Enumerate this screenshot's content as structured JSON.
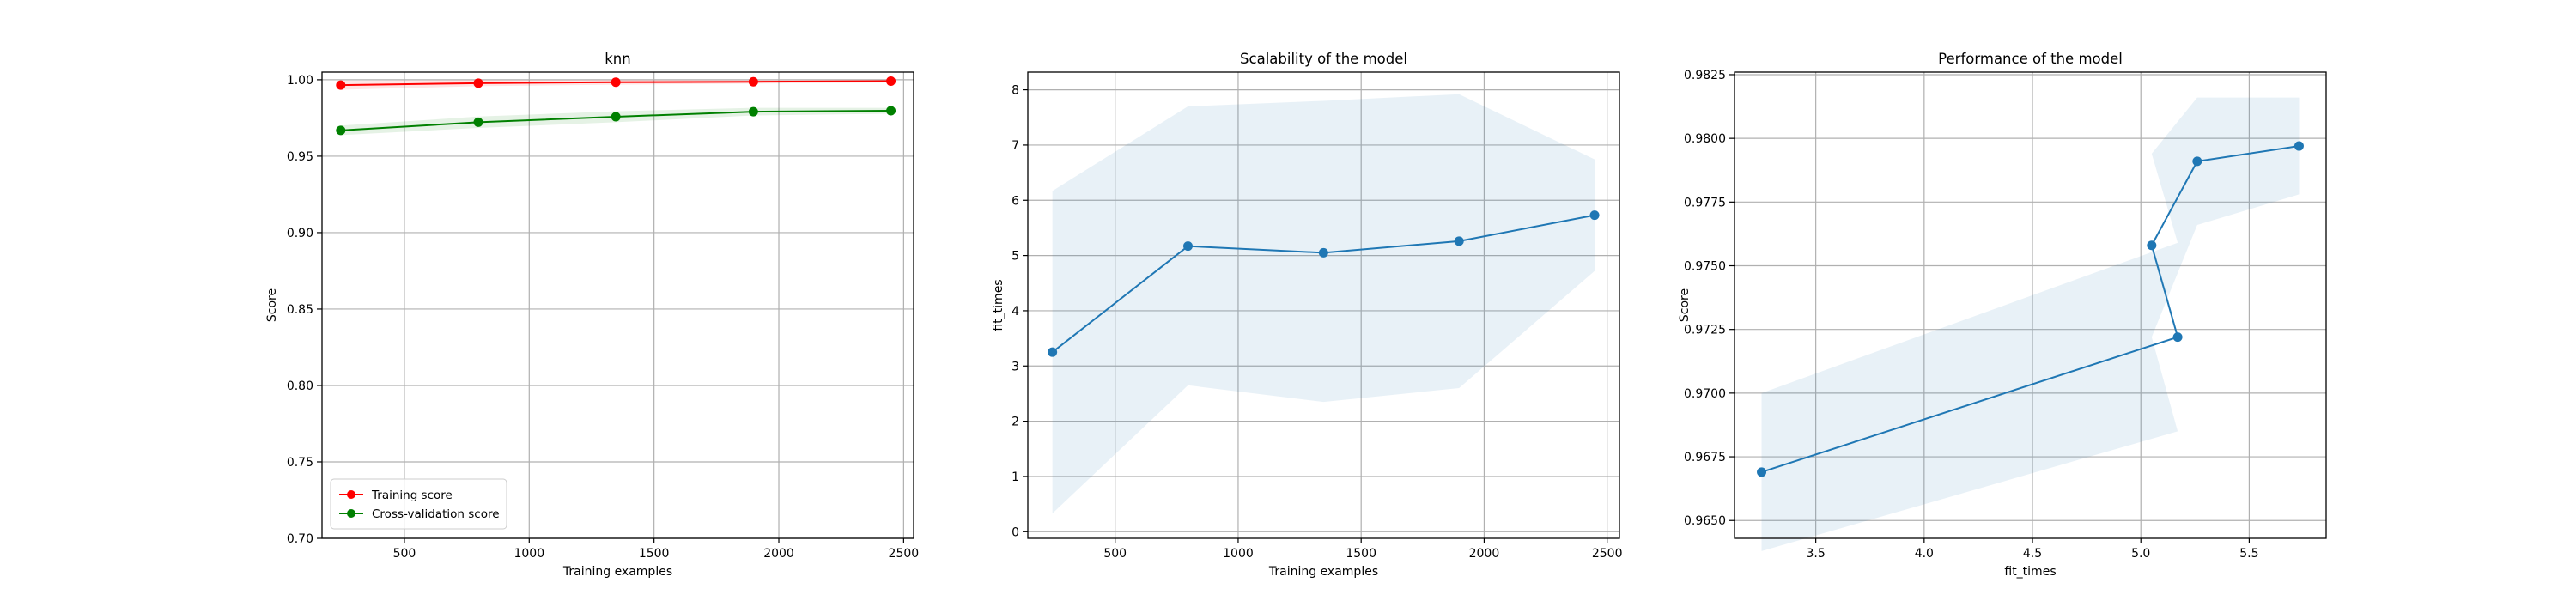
{
  "chart_data": [
    {
      "type": "line",
      "title": "knn",
      "xlabel": "Training examples",
      "ylabel": "Score",
      "xlim": [
        170,
        2540
      ],
      "ylim": [
        0.7,
        1.005
      ],
      "xticks": [
        500,
        1000,
        1500,
        2000,
        2500
      ],
      "yticks": [
        0.7,
        0.75,
        0.8,
        0.85,
        0.9,
        0.95,
        1.0
      ],
      "xtick_labels": [
        "500",
        "1000",
        "1500",
        "2000",
        "2500"
      ],
      "ytick_labels": [
        "0.70",
        "0.75",
        "0.80",
        "0.85",
        "0.90",
        "0.95",
        "1.00"
      ],
      "grid": true,
      "legend_position": "lower-left",
      "x": [
        245,
        796,
        1347,
        1898,
        2449
      ],
      "series": [
        {
          "name": "Training score",
          "color": "#ff0000",
          "band_color": "#ff0000",
          "values": [
            0.9965,
            0.9978,
            0.9984,
            0.9987,
            0.9991
          ],
          "band_low": [
            0.9935,
            0.9958,
            0.9968,
            0.9975,
            0.9982
          ],
          "band_high": [
            0.9995,
            0.9998,
            1.0,
            0.9999,
            1.0
          ]
        },
        {
          "name": "Cross-validation score",
          "color": "#008000",
          "band_color": "#008000",
          "values": [
            0.9669,
            0.9722,
            0.9758,
            0.9791,
            0.9797
          ],
          "band_low": [
            0.9638,
            0.9685,
            0.9722,
            0.9766,
            0.9778
          ],
          "band_high": [
            0.97,
            0.9759,
            0.9794,
            0.9816,
            0.9816
          ]
        }
      ]
    },
    {
      "type": "line",
      "title": "Scalability of the model",
      "xlabel": "Training examples",
      "ylabel": "fit_times",
      "xlim": [
        145,
        2550
      ],
      "ylim": [
        -0.12,
        8.32
      ],
      "xticks": [
        500,
        1000,
        1500,
        2000,
        2500
      ],
      "yticks": [
        0,
        1,
        2,
        3,
        4,
        5,
        6,
        7,
        8
      ],
      "xtick_labels": [
        "500",
        "1000",
        "1500",
        "2000",
        "2500"
      ],
      "ytick_labels": [
        "0",
        "1",
        "2",
        "3",
        "4",
        "5",
        "6",
        "7",
        "8"
      ],
      "grid": true,
      "x": [
        245,
        796,
        1347,
        1898,
        2449
      ],
      "series": [
        {
          "color": "#1f77b4",
          "band_color": "#1f77b4",
          "values": [
            3.25,
            5.17,
            5.05,
            5.26,
            5.73
          ],
          "band_low": [
            0.33,
            2.65,
            2.35,
            2.6,
            4.72
          ],
          "band_high": [
            6.17,
            7.7,
            7.8,
            7.92,
            6.74
          ]
        }
      ]
    },
    {
      "type": "line",
      "title": "Performance of the model",
      "xlabel": "fit_times",
      "ylabel": "Score",
      "xlim": [
        3.125,
        5.855
      ],
      "ylim": [
        0.9643,
        0.9826
      ],
      "xticks": [
        3.5,
        4.0,
        4.5,
        5.0,
        5.5
      ],
      "yticks": [
        0.965,
        0.9675,
        0.97,
        0.9725,
        0.975,
        0.9775,
        0.98,
        0.9825
      ],
      "xtick_labels": [
        "3.5",
        "4.0",
        "4.5",
        "5.0",
        "5.5"
      ],
      "ytick_labels": [
        "0.9650",
        "0.9675",
        "0.9700",
        "0.9725",
        "0.9750",
        "0.9775",
        "0.9800",
        "0.9825"
      ],
      "grid": true,
      "x": [
        3.25,
        5.17,
        5.05,
        5.26,
        5.73
      ],
      "series": [
        {
          "color": "#1f77b4",
          "band_color": "#1f77b4",
          "values": [
            0.9669,
            0.9722,
            0.9758,
            0.9791,
            0.9797
          ],
          "band_low": [
            0.9638,
            0.9685,
            0.9722,
            0.9766,
            0.9778
          ],
          "band_high": [
            0.97,
            0.9759,
            0.9794,
            0.9816,
            0.9816
          ]
        }
      ]
    }
  ]
}
